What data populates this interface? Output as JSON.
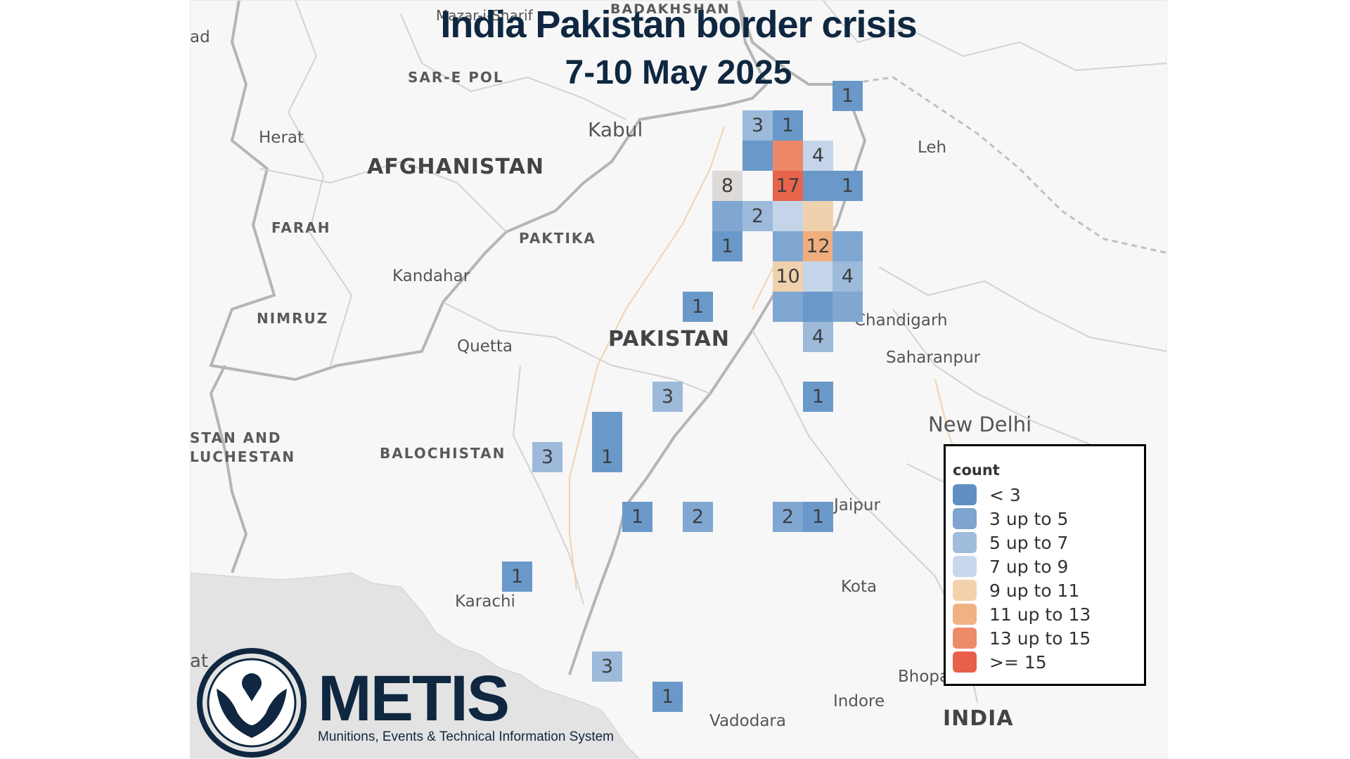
{
  "title": "India Pakistan border crisis",
  "subtitle": "7-10 May 2025",
  "places": [
    {
      "name": "Herat",
      "kind": "city"
    },
    {
      "name": "Kabul",
      "kind": "city"
    },
    {
      "name": "Leh",
      "kind": "city"
    },
    {
      "name": "Kandahar",
      "kind": "city"
    },
    {
      "name": "Quetta",
      "kind": "city"
    },
    {
      "name": "Chandigarh",
      "kind": "city"
    },
    {
      "name": "Saharanpur",
      "kind": "city"
    },
    {
      "name": "New Delhi",
      "kind": "city"
    },
    {
      "name": "Jaipur",
      "kind": "city"
    },
    {
      "name": "Karachi",
      "kind": "city"
    },
    {
      "name": "Kota",
      "kind": "city"
    },
    {
      "name": "Indore",
      "kind": "city"
    },
    {
      "name": "Vadodara",
      "kind": "city"
    },
    {
      "name": "Bhopa",
      "kind": "city"
    },
    {
      "name": "ad",
      "kind": "city"
    },
    {
      "name": "at",
      "kind": "city"
    },
    {
      "name": "Mazar-i-Sharif",
      "kind": "city"
    },
    {
      "name": "BADAKHSHAN",
      "kind": "region"
    },
    {
      "name": "SAR-E POL",
      "kind": "region"
    },
    {
      "name": "FARAH",
      "kind": "region"
    },
    {
      "name": "PAKTIKA",
      "kind": "region"
    },
    {
      "name": "NIMRUZ",
      "kind": "region"
    },
    {
      "name": "BALOCHISTAN",
      "kind": "region"
    },
    {
      "name": "STAN AND",
      "kind": "region"
    },
    {
      "name": "LUCHESTAN",
      "kind": "region"
    },
    {
      "name": "AFGHANISTAN",
      "kind": "country"
    },
    {
      "name": "PAKISTAN",
      "kind": "country"
    },
    {
      "name": "INDIA",
      "kind": "country"
    }
  ],
  "colors": {
    "c1": "#6a99c9",
    "c2": "#7fa7d1",
    "c3": "#9dbadb",
    "c4": "#c4d5ea",
    "c5": "#efd2ad",
    "c6": "#f0ae7f",
    "c7": "#ec8867",
    "c8": "#e8644a",
    "neutral": "#dedad7",
    "brand": "#0f2740"
  },
  "cells": [
    {
      "count": "1",
      "color": "c1"
    },
    {
      "count": "3",
      "color": "c3"
    },
    {
      "count": "1",
      "color": "c1"
    },
    {
      "count": "",
      "color": "c1"
    },
    {
      "count": "",
      "color": "c7"
    },
    {
      "count": "4",
      "color": "c4"
    },
    {
      "count": "8",
      "color": "neutral"
    },
    {
      "count": "17",
      "color": "c8"
    },
    {
      "count": "",
      "color": "c1"
    },
    {
      "count": "1",
      "color": "c1"
    },
    {
      "count": "",
      "color": "c2"
    },
    {
      "count": "2",
      "color": "c3"
    },
    {
      "count": "",
      "color": "c4"
    },
    {
      "count": "",
      "color": "c5"
    },
    {
      "count": "1",
      "color": "c1"
    },
    {
      "count": "",
      "color": "c2"
    },
    {
      "count": "12",
      "color": "c6"
    },
    {
      "count": "",
      "color": "c2"
    },
    {
      "count": "10",
      "color": "c5"
    },
    {
      "count": "",
      "color": "c4"
    },
    {
      "count": "4",
      "color": "c3"
    },
    {
      "count": "1",
      "color": "c1"
    },
    {
      "count": "",
      "color": "c2"
    },
    {
      "count": "",
      "color": "c1"
    },
    {
      "count": "",
      "color": "c2"
    },
    {
      "count": "4",
      "color": "c3"
    },
    {
      "count": "3",
      "color": "c3"
    },
    {
      "count": "1",
      "color": "c1"
    },
    {
      "count": "",
      "color": "c1"
    },
    {
      "count": "3",
      "color": "c3"
    },
    {
      "count": "1",
      "color": "c1"
    },
    {
      "count": "1",
      "color": "c1"
    },
    {
      "count": "2",
      "color": "c2"
    },
    {
      "count": "2",
      "color": "c2"
    },
    {
      "count": "1",
      "color": "c1"
    },
    {
      "count": "1",
      "color": "c1"
    },
    {
      "count": "3",
      "color": "c3"
    },
    {
      "count": "1",
      "color": "c1"
    }
  ],
  "legend": {
    "title": "count",
    "items": [
      {
        "label": "< 3",
        "color": "#5f8fc0"
      },
      {
        "label": "3 up to 5",
        "color": "#7ea4cf"
      },
      {
        "label": "5 up to 7",
        "color": "#a0bcdc"
      },
      {
        "label": "7 up to 9",
        "color": "#c8d7ec"
      },
      {
        "label": "9 up to 11",
        "color": "#f2d2ab"
      },
      {
        "label": "11 up to 13",
        "color": "#f0b283"
      },
      {
        "label": "13 up to 15",
        "color": "#ec8b68"
      },
      {
        "label": ">= 15",
        "color": "#e6604a"
      }
    ]
  },
  "logo": {
    "wordmark": "METIS",
    "tagline": "Munitions, Events & Technical Information System"
  }
}
